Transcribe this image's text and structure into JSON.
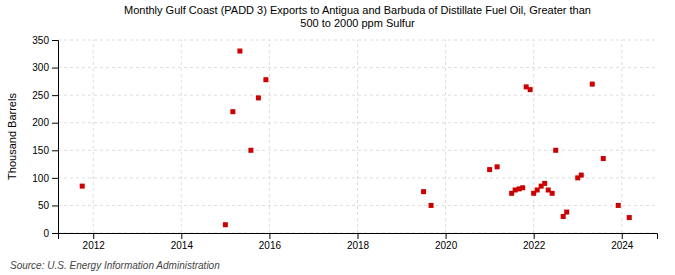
{
  "chart_data": {
    "type": "scatter",
    "title": "Monthly Gulf Coast (PADD 3) Exports to Antigua and Barbuda of Distillate Fuel Oil, Greater than\n500 to 2000 ppm Sulfur",
    "ylabel": "Thousand Barrels",
    "source": "Source: U.S. Energy Information Administration",
    "color": "#cc0000",
    "marker": "square",
    "grid": true,
    "xlim": [
      2011.2,
      2024.8
    ],
    "ylim": [
      0,
      350
    ],
    "xticks": [
      2012,
      2014,
      2016,
      2018,
      2020,
      2022,
      2024
    ],
    "yticks": [
      0,
      50,
      100,
      150,
      200,
      250,
      300,
      350
    ],
    "x": [
      2011.75,
      2015.0,
      2015.17,
      2015.33,
      2015.58,
      2015.75,
      2015.92,
      2019.5,
      2019.67,
      2021.0,
      2021.17,
      2021.5,
      2021.58,
      2021.67,
      2021.75,
      2021.83,
      2021.92,
      2022.0,
      2022.08,
      2022.17,
      2022.25,
      2022.33,
      2022.42,
      2022.5,
      2022.67,
      2022.75,
      2023.0,
      2023.08,
      2023.33,
      2023.58,
      2023.92,
      2024.17
    ],
    "values": [
      85,
      15,
      220,
      330,
      150,
      245,
      278,
      75,
      50,
      115,
      120,
      72,
      78,
      80,
      82,
      265,
      260,
      72,
      78,
      85,
      90,
      78,
      72,
      150,
      30,
      38,
      100,
      105,
      270,
      135,
      50,
      28
    ]
  }
}
